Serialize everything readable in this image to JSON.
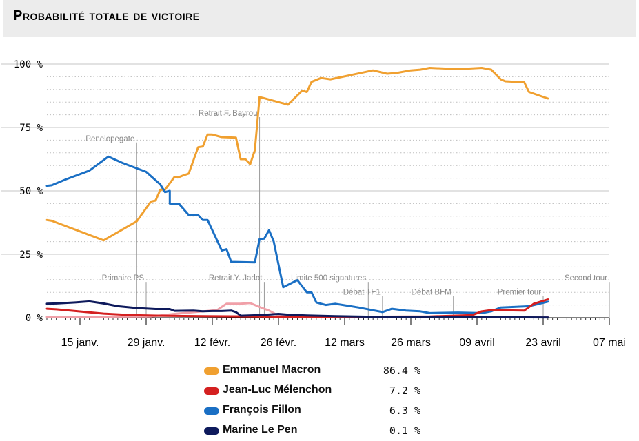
{
  "title": "Probabilité totale de victoire",
  "chart_data": {
    "type": "line",
    "x_unit": "date",
    "xlim": [
      "2017-01-08",
      "2017-05-07"
    ],
    "ylim": [
      0,
      100
    ],
    "y_ticks": [
      0,
      25,
      50,
      75,
      100
    ],
    "y_tick_labels": [
      "0 %",
      "25 %",
      "50 %",
      "75 %",
      "100 %"
    ],
    "x_ticks": [
      "2017-01-15",
      "2017-01-29",
      "2017-02-12",
      "2017-02-26",
      "2017-03-12",
      "2017-03-26",
      "2017-04-09",
      "2017-04-23",
      "2017-05-07"
    ],
    "x_tick_labels": [
      "15 janv.",
      "29 janv.",
      "12 févr.",
      "26 févr.",
      "12 mars",
      "26 mars",
      "09 avril",
      "23 avril",
      "07 mai"
    ],
    "grid": true,
    "legend_placement": "bottom-center",
    "annotations": [
      {
        "label": "Penelopegate",
        "x": "2017-01-27",
        "y": 68
      },
      {
        "label": "Retrait F. Bayrou",
        "x": "2017-02-22",
        "y": 78
      },
      {
        "label": "Primaire PS",
        "x": "2017-01-29",
        "y": 13
      },
      {
        "label": "Retrait Y. Jadot",
        "x": "2017-02-23",
        "y": 13
      },
      {
        "label": "Limite 500 signatures",
        "x": "2017-03-17",
        "y": 13
      },
      {
        "label": "Débat TF1",
        "x": "2017-03-20",
        "y": 7.5
      },
      {
        "label": "Débat BFM",
        "x": "2017-04-04",
        "y": 7.5
      },
      {
        "label": "Premier tour",
        "x": "2017-04-23",
        "y": 7.5
      },
      {
        "label": "Second tour",
        "x": "2017-05-07",
        "y": 13
      }
    ],
    "series": [
      {
        "name": "Emmanuel Macron",
        "color": "#f0a030",
        "final": "86.4 %",
        "points": [
          [
            "2017-01-08",
            38.5
          ],
          [
            "2017-01-09",
            38.2
          ],
          [
            "2017-01-20",
            30.5
          ],
          [
            "2017-01-27",
            38
          ],
          [
            "2017-01-30",
            45.8
          ],
          [
            "2017-01-31",
            46.2
          ],
          [
            "2017-02-01",
            50.5
          ],
          [
            "2017-02-02",
            50.5
          ],
          [
            "2017-02-04",
            55.5
          ],
          [
            "2017-02-05",
            55.5
          ],
          [
            "2017-02-06",
            56.2
          ],
          [
            "2017-02-07",
            56.8
          ],
          [
            "2017-02-09",
            67.2
          ],
          [
            "2017-02-10",
            67.5
          ],
          [
            "2017-02-11",
            72.2
          ],
          [
            "2017-02-12",
            72.2
          ],
          [
            "2017-02-14",
            71.2
          ],
          [
            "2017-02-17",
            71
          ],
          [
            "2017-02-18",
            62.5
          ],
          [
            "2017-02-19",
            62.5
          ],
          [
            "2017-02-20",
            60.5
          ],
          [
            "2017-02-21",
            66
          ],
          [
            "2017-02-22",
            87
          ],
          [
            "2017-02-28",
            84
          ],
          [
            "2017-03-03",
            89.5
          ],
          [
            "2017-03-04",
            89
          ],
          [
            "2017-03-05",
            93
          ],
          [
            "2017-03-07",
            94.5
          ],
          [
            "2017-03-09",
            94
          ],
          [
            "2017-03-18",
            97.5
          ],
          [
            "2017-03-21",
            96.2
          ],
          [
            "2017-03-23",
            96.5
          ],
          [
            "2017-03-26",
            97.5
          ],
          [
            "2017-03-28",
            97.8
          ],
          [
            "2017-03-30",
            98.5
          ],
          [
            "2017-04-05",
            98
          ],
          [
            "2017-04-10",
            98.5
          ],
          [
            "2017-04-12",
            97.8
          ],
          [
            "2017-04-14",
            94
          ],
          [
            "2017-04-15",
            93.2
          ],
          [
            "2017-04-19",
            92.8
          ],
          [
            "2017-04-20",
            89
          ],
          [
            "2017-04-24",
            86.4
          ]
        ]
      },
      {
        "name": "Jean-Luc Mélenchon",
        "color": "#d42020",
        "final": "7.2 %",
        "points": [
          [
            "2017-01-08",
            3.5
          ],
          [
            "2017-01-10",
            3.3
          ],
          [
            "2017-01-14",
            2.6
          ],
          [
            "2017-01-20",
            1.6
          ],
          [
            "2017-01-26",
            1
          ],
          [
            "2017-02-01",
            0.8
          ],
          [
            "2017-02-10",
            0.6
          ],
          [
            "2017-02-22",
            0.5
          ],
          [
            "2017-03-01",
            0.3
          ],
          [
            "2017-03-10",
            0.3
          ],
          [
            "2017-03-20",
            0.4
          ],
          [
            "2017-03-30",
            0.5
          ],
          [
            "2017-04-08",
            1
          ],
          [
            "2017-04-10",
            2.5
          ],
          [
            "2017-04-12",
            3
          ],
          [
            "2017-04-19",
            2.8
          ],
          [
            "2017-04-21",
            5.5
          ],
          [
            "2017-04-24",
            7.2
          ]
        ]
      },
      {
        "name": "François Fillon",
        "color": "#1a6fc4",
        "final": "6.3 %",
        "points": [
          [
            "2017-01-08",
            52
          ],
          [
            "2017-01-09",
            52.2
          ],
          [
            "2017-01-12",
            54.5
          ],
          [
            "2017-01-17",
            58
          ],
          [
            "2017-01-21",
            63.5
          ],
          [
            "2017-01-24",
            61
          ],
          [
            "2017-01-29",
            57.5
          ],
          [
            "2017-02-01",
            52.5
          ],
          [
            "2017-02-02",
            49.5
          ],
          [
            "2017-02-03",
            50
          ],
          [
            "2017-02-03",
            45
          ],
          [
            "2017-02-05",
            44.8
          ],
          [
            "2017-02-07",
            40.5
          ],
          [
            "2017-02-09",
            40.5
          ],
          [
            "2017-02-10",
            38.5
          ],
          [
            "2017-02-11",
            38.5
          ],
          [
            "2017-02-14",
            26.5
          ],
          [
            "2017-02-15",
            27
          ],
          [
            "2017-02-16",
            22
          ],
          [
            "2017-02-21",
            21.8
          ],
          [
            "2017-02-22",
            31
          ],
          [
            "2017-02-23",
            31.2
          ],
          [
            "2017-02-24",
            34.5
          ],
          [
            "2017-02-25",
            30
          ],
          [
            "2017-02-27",
            12
          ],
          [
            "2017-03-02",
            14.8
          ],
          [
            "2017-03-04",
            10
          ],
          [
            "2017-03-05",
            10
          ],
          [
            "2017-03-06",
            6
          ],
          [
            "2017-03-08",
            5
          ],
          [
            "2017-03-10",
            5.5
          ],
          [
            "2017-03-15",
            4
          ],
          [
            "2017-03-20",
            2.2
          ],
          [
            "2017-03-22",
            3.5
          ],
          [
            "2017-03-25",
            2.8
          ],
          [
            "2017-03-28",
            2.5
          ],
          [
            "2017-03-30",
            1.8
          ],
          [
            "2017-04-05",
            2
          ],
          [
            "2017-04-10",
            1.8
          ],
          [
            "2017-04-12",
            2.5
          ],
          [
            "2017-04-14",
            4
          ],
          [
            "2017-04-20",
            4.5
          ],
          [
            "2017-04-24",
            6.3
          ]
        ]
      },
      {
        "name": "Marine Le Pen",
        "color": "#0e1a5c",
        "final": "0.1 %",
        "points": [
          [
            "2017-01-08",
            5.5
          ],
          [
            "2017-01-10",
            5.6
          ],
          [
            "2017-01-14",
            6
          ],
          [
            "2017-01-17",
            6.4
          ],
          [
            "2017-01-20",
            5.6
          ],
          [
            "2017-01-23",
            4.5
          ],
          [
            "2017-01-27",
            3.8
          ],
          [
            "2017-01-31",
            3.4
          ],
          [
            "2017-02-03",
            3.4
          ],
          [
            "2017-02-04",
            2.7
          ],
          [
            "2017-02-08",
            2.8
          ],
          [
            "2017-02-10",
            2.5
          ],
          [
            "2017-02-12",
            2.6
          ],
          [
            "2017-02-14",
            2.6
          ],
          [
            "2017-02-16",
            2.8
          ],
          [
            "2017-02-17",
            2.2
          ],
          [
            "2017-02-18",
            0.8
          ],
          [
            "2017-02-22",
            1
          ],
          [
            "2017-02-26",
            1.5
          ],
          [
            "2017-02-28",
            1.2
          ],
          [
            "2017-03-04",
            0.9
          ],
          [
            "2017-03-10",
            0.6
          ],
          [
            "2017-03-20",
            0.3
          ],
          [
            "2017-04-01",
            0.2
          ],
          [
            "2017-04-10",
            0.2
          ],
          [
            "2017-04-24",
            0.1
          ]
        ]
      },
      {
        "name": "",
        "color": "#f0a0a8",
        "final": "",
        "points": [
          [
            "2017-01-08",
            0.3
          ],
          [
            "2017-01-30",
            0.5
          ],
          [
            "2017-02-04",
            1.5
          ],
          [
            "2017-02-13",
            3
          ],
          [
            "2017-02-15",
            5.5
          ],
          [
            "2017-02-16",
            5.5
          ],
          [
            "2017-02-18",
            5.5
          ],
          [
            "2017-02-20",
            5.8
          ],
          [
            "2017-02-22",
            4.2
          ],
          [
            "2017-02-24",
            2.8
          ],
          [
            "2017-02-26",
            0.8
          ],
          [
            "2017-03-02",
            0.3
          ],
          [
            "2017-04-24",
            0.3
          ]
        ]
      }
    ]
  }
}
